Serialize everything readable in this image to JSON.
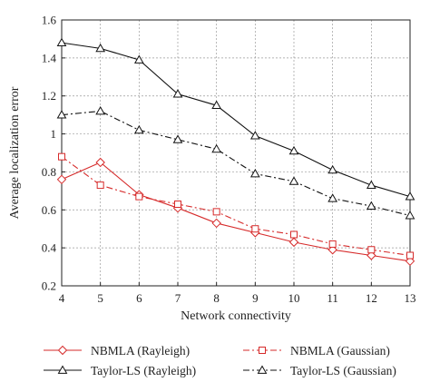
{
  "chart_data": {
    "type": "line",
    "title": "",
    "xlabel": "Network connectivity",
    "ylabel": "Average localization error",
    "x": [
      4,
      5,
      6,
      7,
      8,
      9,
      10,
      11,
      12,
      13
    ],
    "xlim": [
      4,
      13
    ],
    "ylim": [
      0.2,
      1.6
    ],
    "xticks": [
      "4",
      "5",
      "6",
      "7",
      "8",
      "9",
      "10",
      "11",
      "12",
      "13"
    ],
    "yticks": [
      "0.2",
      "0.4",
      "0.6",
      "0.8",
      "1",
      "1.2",
      "1.4",
      "1.6"
    ],
    "grid": true,
    "legend_position": "bottom, below plot",
    "series": [
      {
        "name": "NBMLA (Rayleigh)",
        "values": [
          0.76,
          0.85,
          0.68,
          0.61,
          0.53,
          0.48,
          0.43,
          0.39,
          0.36,
          0.33
        ],
        "color": "#d62a2a",
        "dash": "solid",
        "marker": "diamond"
      },
      {
        "name": "NBMLA (Gaussian)",
        "values": [
          0.88,
          0.73,
          0.67,
          0.63,
          0.59,
          0.5,
          0.47,
          0.42,
          0.39,
          0.36
        ],
        "color": "#d62a2a",
        "dash": "dashdot",
        "marker": "square"
      },
      {
        "name": "Taylor-LS (Rayleigh)",
        "values": [
          1.48,
          1.45,
          1.39,
          1.21,
          1.15,
          0.99,
          0.91,
          0.81,
          0.73,
          0.67
        ],
        "color": "#111111",
        "dash": "solid",
        "marker": "triangle"
      },
      {
        "name": "Taylor-LS (Gaussian)",
        "values": [
          1.1,
          1.12,
          1.02,
          0.97,
          0.92,
          0.79,
          0.75,
          0.66,
          0.62,
          0.57
        ],
        "color": "#111111",
        "dash": "dashdot",
        "marker": "triangle"
      }
    ]
  }
}
